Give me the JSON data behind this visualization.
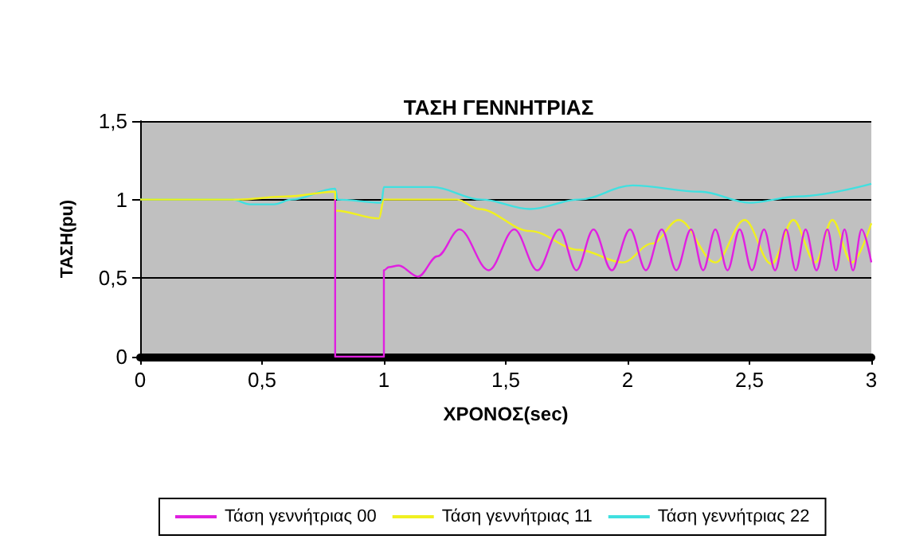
{
  "chart_data": {
    "type": "line",
    "title": "ΤΑΣΗ ΓΕΝΝΗΤΡΙΑΣ",
    "xlabel": "ΧΡΟΝΟΣ(sec)",
    "ylabel": "ΤΑΣΗ(pu)",
    "xlim": [
      0,
      3
    ],
    "xticks": [
      0,
      {
        "value": 0.5,
        "label": "0,5"
      },
      1,
      {
        "value": 1.5,
        "label": "1,5"
      },
      2,
      {
        "value": 2.5,
        "label": "2,5"
      },
      3
    ],
    "ylim": [
      0,
      1.5
    ],
    "yticks": [
      0,
      {
        "value": 0.5,
        "label": "0,5"
      },
      1,
      {
        "value": 1.5,
        "label": "1,5"
      }
    ],
    "grid": "y",
    "legend": "bottom",
    "marker": "none",
    "line_style": "solid",
    "series": [
      {
        "name": "Τάση γεννήτριας 00",
        "color": "#e020e0",
        "x": [
          0.8,
          0.8,
          1.0,
          1.0,
          1.02,
          1.06,
          1.14,
          1.22,
          1.31,
          1.43,
          1.535,
          1.63,
          1.72,
          1.79,
          1.86,
          1.935,
          2.01,
          2.075,
          2.14,
          2.2,
          2.26,
          2.31,
          2.36,
          2.41,
          2.46,
          2.51,
          2.56,
          2.605,
          2.65,
          2.69,
          2.73,
          2.775,
          2.82,
          2.855,
          2.89,
          2.925,
          2.96,
          3.0
        ],
        "values": [
          1.0,
          0,
          0,
          0.55,
          0.57,
          0.58,
          0.51,
          0.64,
          0.81,
          0.55,
          0.81,
          0.55,
          0.81,
          0.55,
          0.81,
          0.55,
          0.81,
          0.55,
          0.81,
          0.55,
          0.81,
          0.55,
          0.81,
          0.55,
          0.81,
          0.55,
          0.81,
          0.55,
          0.81,
          0.55,
          0.81,
          0.55,
          0.81,
          0.55,
          0.81,
          0.55,
          0.81,
          0.6
        ]
      },
      {
        "name": "Τάση γεννήτριας 11",
        "color": "#f0f020",
        "x": [
          0,
          0.4,
          0.6,
          0.8,
          0.8,
          0.98,
          1.0,
          1.3,
          1.39,
          1.6,
          1.8,
          1.98,
          2.1,
          2.21,
          2.36,
          2.48,
          2.59,
          2.68,
          2.77,
          2.84,
          2.92,
          3.0
        ],
        "values": [
          1.0,
          1.0,
          1.02,
          1.05,
          0.93,
          0.88,
          1.0,
          1.0,
          0.94,
          0.8,
          0.68,
          0.6,
          0.72,
          0.87,
          0.6,
          0.87,
          0.59,
          0.87,
          0.6,
          0.87,
          0.6,
          0.85
        ]
      },
      {
        "name": "Τάση γεννήτριας 22",
        "color": "#40e0e0",
        "x": [
          0,
          0.38,
          0.45,
          0.55,
          0.62,
          0.8,
          0.81,
          0.99,
          1.0,
          1.2,
          1.4,
          1.6,
          1.8,
          2.02,
          2.3,
          2.5,
          2.7,
          3.0
        ],
        "values": [
          1.0,
          1.0,
          0.97,
          0.97,
          1.0,
          1.07,
          1.0,
          0.98,
          1.08,
          1.08,
          1.0,
          0.94,
          1.0,
          1.09,
          1.05,
          0.98,
          1.02,
          1.1
        ]
      }
    ]
  }
}
